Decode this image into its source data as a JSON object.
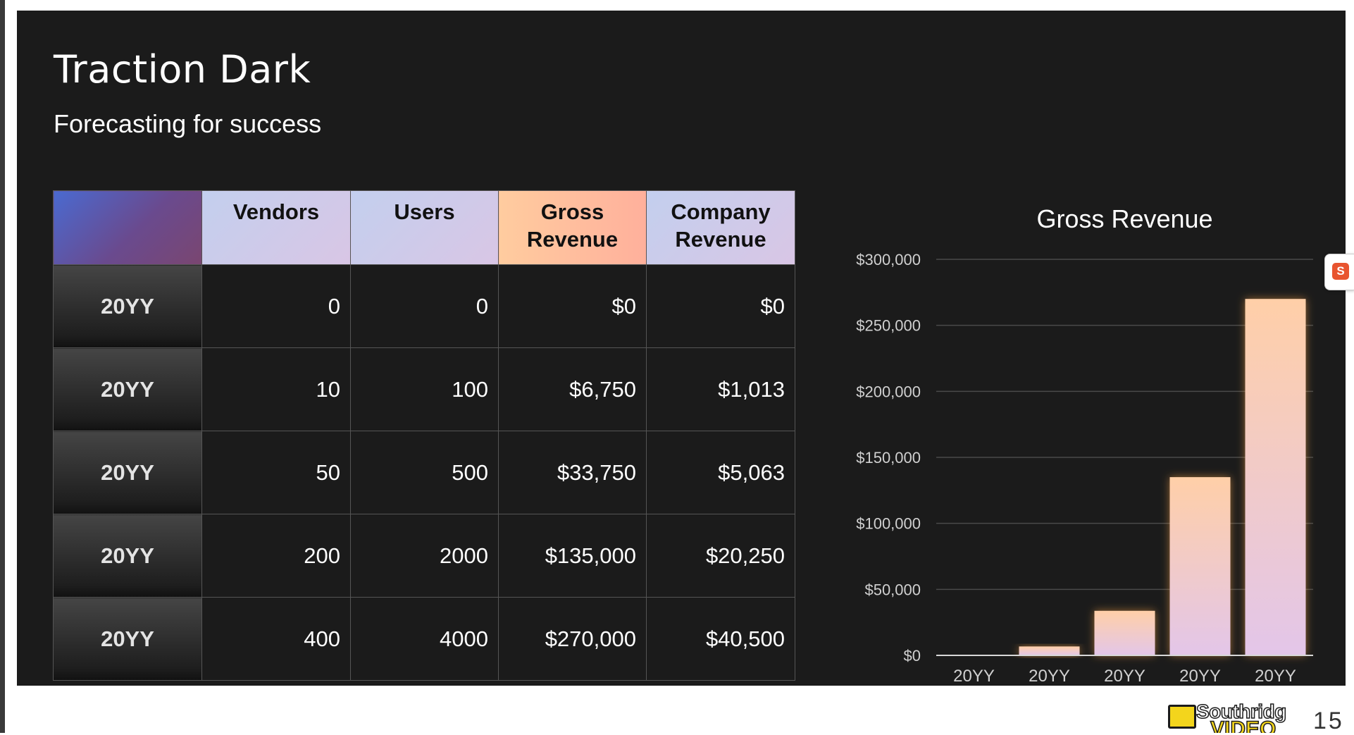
{
  "slide": {
    "title": "Traction Dark",
    "subtitle": "Forecasting for success"
  },
  "table": {
    "headers": [
      "",
      "Vendors",
      "Users",
      "Gross Revenue",
      "Company Revenue"
    ],
    "rows": [
      [
        "20YY",
        "0",
        "0",
        "$0",
        "$0"
      ],
      [
        "20YY",
        "10",
        "100",
        "$6,750",
        "$1,013"
      ],
      [
        "20YY",
        "50",
        "500",
        "$33,750",
        "$5,063"
      ],
      [
        "20YY",
        "200",
        "2000",
        "$135,000",
        "$20,250"
      ],
      [
        "20YY",
        "400",
        "4000",
        "$270,000",
        "$40,500"
      ]
    ]
  },
  "chart_data": {
    "type": "bar",
    "title": "Gross Revenue",
    "categories": [
      "20YY",
      "20YY",
      "20YY",
      "20YY",
      "20YY"
    ],
    "values": [
      0,
      6750,
      33750,
      135000,
      270000
    ],
    "ylim": [
      0,
      300000
    ],
    "yticks": [
      0,
      50000,
      100000,
      150000,
      200000,
      250000,
      300000
    ],
    "ytick_labels": [
      "$0",
      "$50,000",
      "$100,000",
      "$150,000",
      "$200,000",
      "$250,000",
      "$300,000"
    ],
    "xlabel": "",
    "ylabel": "",
    "grid": true,
    "legend": "none",
    "colors": {
      "bar_top": "#ffcfa8",
      "bar_bottom": "#e3c6e9",
      "glow": "#ffa545",
      "gridline": "#4a4a4a",
      "axis": "#d8d8d8"
    }
  },
  "footer": {
    "brand_name": "Southridge",
    "brand_sub": "VIDEO",
    "page_number": "15"
  },
  "side_tab": {
    "icon": "s-app-icon",
    "glyph": "S"
  }
}
